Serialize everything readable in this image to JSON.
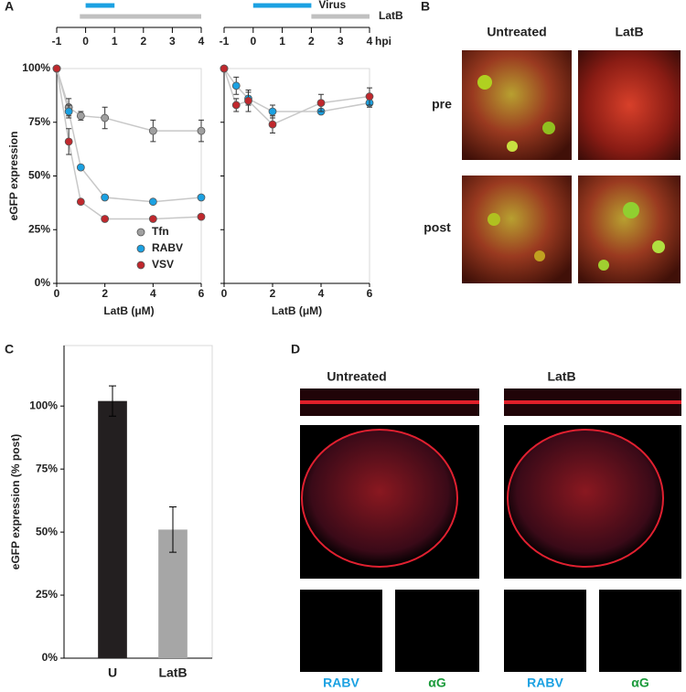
{
  "panel_letters": [
    "A",
    "B",
    "C",
    "D"
  ],
  "timeline": {
    "xlim": [
      -1,
      4
    ],
    "ticks": [
      -1,
      0,
      1,
      2,
      3,
      4
    ],
    "unit": "hpi",
    "virus": {
      "label": "Virus",
      "color": "#1ba1e2",
      "spans": [
        [
          0,
          1
        ],
        [
          0,
          2
        ]
      ]
    },
    "latb": {
      "label": "LatB",
      "color": "#c0c0c0",
      "spans": [
        [
          -0.2,
          4
        ],
        [
          2,
          4
        ]
      ]
    }
  },
  "panel_b": {
    "columns": [
      "Untreated",
      "LatB"
    ],
    "rows": [
      "pre",
      "post"
    ]
  },
  "panel_d": {
    "columns": [
      "Untreated",
      "LatB"
    ],
    "channels": [
      {
        "label": "RABV",
        "color": "#1ba1e2"
      },
      {
        "label": "αG",
        "color": "#1a9a3a"
      }
    ]
  },
  "chart_data": [
    {
      "type": "line",
      "ylabel": "eGFP expression",
      "xlabel": "LatB (μM)",
      "x": [
        0,
        0.5,
        1,
        2,
        4,
        6
      ],
      "xlim": [
        0,
        6
      ],
      "xticks": [
        0,
        2,
        4,
        6
      ],
      "ylim": [
        0,
        100
      ],
      "yticks": [
        {
          "value": 0,
          "label": "0%"
        },
        {
          "value": 25,
          "label": "25%"
        },
        {
          "value": 50,
          "label": "50%"
        },
        {
          "value": 75,
          "label": "75%"
        },
        {
          "value": 100,
          "label": "100%"
        }
      ],
      "line_color": "#c8c8c8",
      "legend": "lower right",
      "series": [
        {
          "name": "Tfn",
          "color": "#a0a0a0",
          "values": [
            100,
            82,
            78,
            77,
            71,
            71
          ],
          "errors": [
            0,
            4,
            2,
            5,
            5,
            5
          ]
        },
        {
          "name": "RABV",
          "color": "#1ba1e2",
          "values": [
            100,
            80,
            54,
            40,
            38,
            40
          ],
          "errors": [
            0,
            3,
            1,
            1,
            1,
            1
          ]
        },
        {
          "name": "VSV",
          "color": "#c0282d",
          "values": [
            100,
            66,
            38,
            30,
            30,
            31
          ],
          "errors": [
            0,
            6,
            1,
            1,
            1,
            1
          ]
        }
      ]
    },
    {
      "type": "line",
      "xlabel": "LatB (μM)",
      "x": [
        0,
        0.5,
        1,
        2,
        4,
        6
      ],
      "xlim": [
        0,
        6
      ],
      "xticks": [
        0,
        2,
        4,
        6
      ],
      "ylim": [
        0,
        100
      ],
      "yticks": [
        0,
        25,
        50,
        75,
        100
      ],
      "ytick_labels": false,
      "line_color": "#c8c8c8",
      "legend": false,
      "series": [
        {
          "color": "#1ba1e2",
          "values": [
            100,
            92,
            86,
            80,
            80,
            84
          ],
          "errors": [
            0,
            4,
            3,
            3,
            1,
            2
          ]
        },
        {
          "color": "#c0282d",
          "values": [
            100,
            83,
            85,
            74,
            84,
            87
          ],
          "errors": [
            0,
            3,
            5,
            4,
            4,
            4
          ]
        }
      ]
    },
    {
      "type": "bar",
      "ylabel": "eGFP expression (% post)",
      "categories": [
        "U",
        "LatB"
      ],
      "values": [
        102,
        51
      ],
      "errors": [
        6,
        9
      ],
      "colors": [
        "#231f20",
        "#a6a6a6"
      ],
      "ylim": [
        0,
        124
      ],
      "yticks": [
        {
          "value": 0,
          "label": "0%"
        },
        {
          "value": 25,
          "label": "25%"
        },
        {
          "value": 50,
          "label": "50%"
        },
        {
          "value": 75,
          "label": "75%"
        },
        {
          "value": 100,
          "label": "100%"
        }
      ]
    }
  ]
}
